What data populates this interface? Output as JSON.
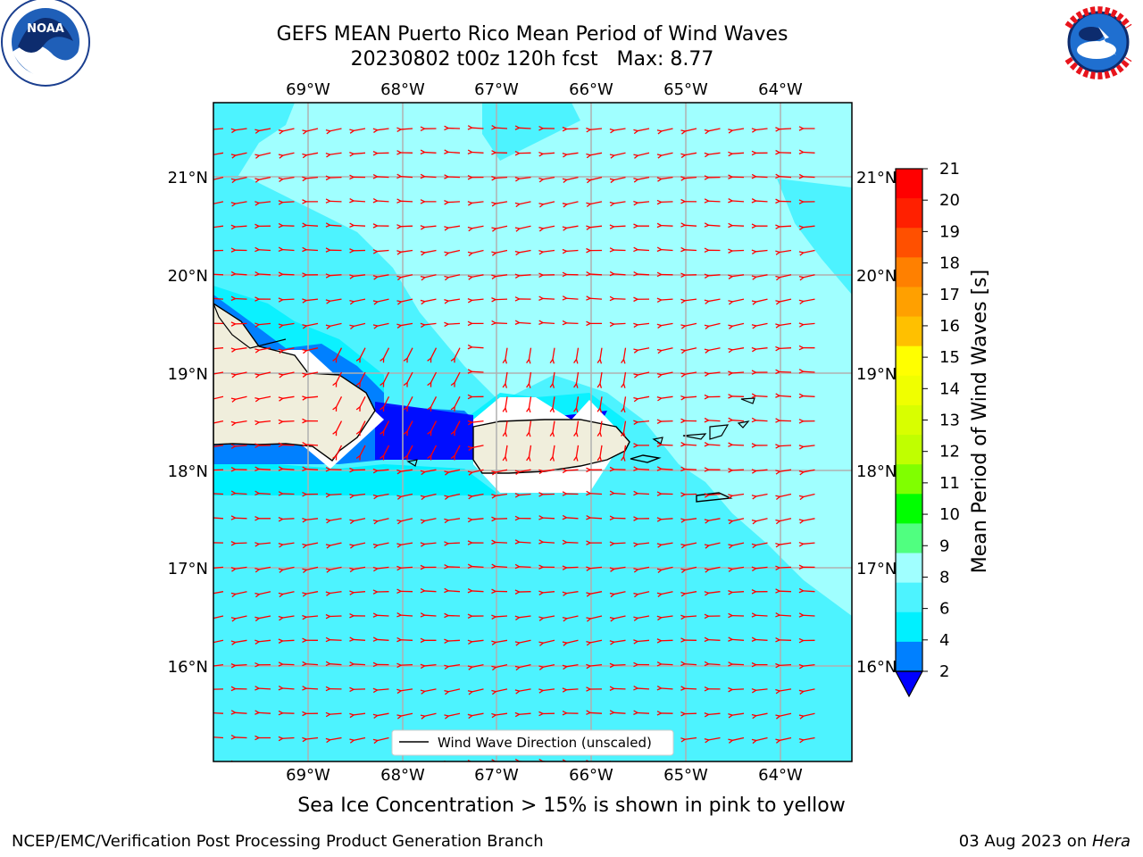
{
  "title": {
    "line1": "GEFS MEAN Puerto Rico Mean Period of Wind Waves",
    "line2": "20230802 t00z 120h fcst   Max: 8.77"
  },
  "map": {
    "lon_labels": [
      "69°W",
      "68°W",
      "67°W",
      "66°W",
      "65°W",
      "64°W"
    ],
    "lat_labels": [
      "21°N",
      "20°N",
      "19°N",
      "18°N",
      "17°N",
      "16°N"
    ],
    "ocean_colors": {
      "band_6_8": "#4df3ff",
      "band_8_9": "#a0ffff",
      "band_4_6": "#00f0ff",
      "band_2_4": "#0080ff",
      "band_lt2": "#0000ff",
      "land": "#f0eedc",
      "arrow": "#ff0000",
      "grid": "#b0b0b0"
    },
    "legend_label": "Wind Wave Direction (unscaled)"
  },
  "colorbar": {
    "label": "Mean Period of Wind Waves [s]",
    "ticks": [
      "21",
      "20",
      "19",
      "18",
      "17",
      "16",
      "15",
      "14",
      "13",
      "12",
      "11",
      "10",
      "9",
      "8",
      "6",
      "4",
      "2"
    ],
    "colors": [
      "#ff0000",
      "#ff2000",
      "#ff5000",
      "#ff8000",
      "#ffa000",
      "#ffc000",
      "#ffff00",
      "#f0ff00",
      "#d8ff00",
      "#c0ff00",
      "#80ff00",
      "#00ff00",
      "#00ff80",
      "#50ff80",
      "#a0ffff",
      "#4df3ff",
      "#00f0ff",
      "#0080ff",
      "#0000ff"
    ]
  },
  "logos": {
    "noaa_text": "NOAA",
    "nws_text": "NATIONAL WEATHER SERVICE"
  },
  "note": "Sea Ice Concentration > 15% is shown in pink to yellow",
  "footer": {
    "left": "NCEP/EMC/Verification Post Processing Product Generation Branch",
    "right_prefix": "03 Aug 2023 on ",
    "right_host": "Hera"
  }
}
